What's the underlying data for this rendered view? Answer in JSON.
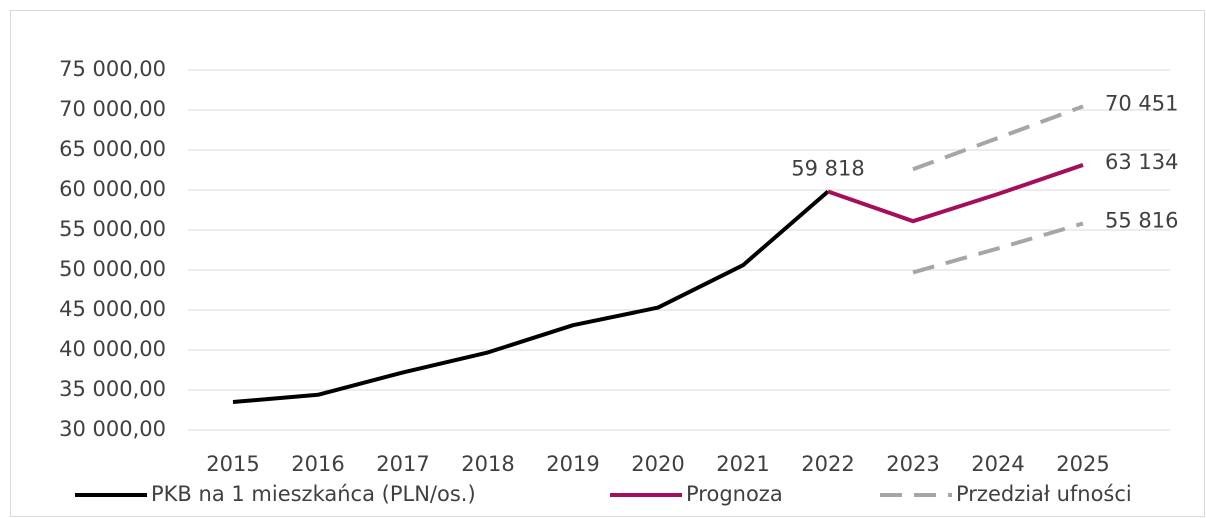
{
  "chart_data": {
    "type": "line",
    "categories": [
      "2015",
      "2016",
      "2017",
      "2018",
      "2019",
      "2020",
      "2021",
      "2022",
      "2023",
      "2024",
      "2025"
    ],
    "ylim": [
      30000,
      75000
    ],
    "yticks": [
      {
        "value": 30000,
        "label": "30 000,00"
      },
      {
        "value": 35000,
        "label": "35 000,00"
      },
      {
        "value": 40000,
        "label": "40 000,00"
      },
      {
        "value": 45000,
        "label": "45 000,00"
      },
      {
        "value": 50000,
        "label": "50 000,00"
      },
      {
        "value": 55000,
        "label": "55 000,00"
      },
      {
        "value": 60000,
        "label": "60 000,00"
      },
      {
        "value": 65000,
        "label": "65 000,00"
      },
      {
        "value": 70000,
        "label": "70 000,00"
      },
      {
        "value": 75000,
        "label": "75 000,00"
      }
    ],
    "grid": true,
    "legend": "bottom",
    "series": [
      {
        "name": "PKB na 1 mieszkańca (PLN/os.)",
        "color": "#000000",
        "values": [
          33500,
          34400,
          37200,
          39700,
          43100,
          45300,
          50600,
          59818,
          null,
          null,
          null
        ],
        "value_labels": [
          null,
          null,
          null,
          null,
          null,
          null,
          null,
          "59 818",
          null,
          null,
          null
        ]
      },
      {
        "name": "Prognoza",
        "color": "#a50e5a",
        "values": [
          null,
          null,
          null,
          null,
          null,
          null,
          null,
          59818,
          56100,
          59500,
          63134
        ],
        "value_labels": [
          null,
          null,
          null,
          null,
          null,
          null,
          null,
          null,
          null,
          null,
          "63 134"
        ]
      },
      {
        "name": "Przedział ufności",
        "color": "#a6a6a6",
        "dashed": true,
        "values": [
          null,
          null,
          null,
          null,
          null,
          null,
          null,
          null,
          62600,
          66500,
          70451
        ],
        "value_labels": [
          null,
          null,
          null,
          null,
          null,
          null,
          null,
          null,
          null,
          null,
          "70 451"
        ],
        "lower": [
          null,
          null,
          null,
          null,
          null,
          null,
          null,
          null,
          49700,
          52700,
          55816
        ],
        "lower_labels": [
          null,
          null,
          null,
          null,
          null,
          null,
          null,
          null,
          null,
          null,
          "55 816"
        ]
      }
    ]
  }
}
